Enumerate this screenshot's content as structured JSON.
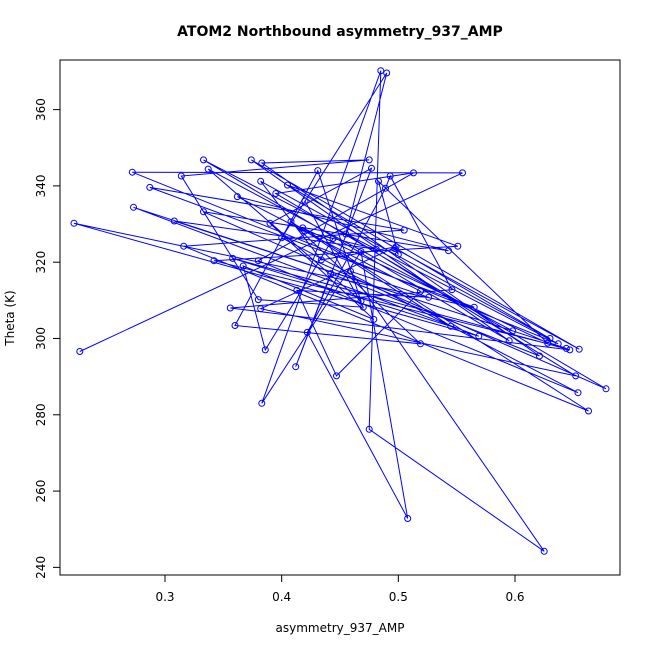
{
  "chart_data": {
    "type": "scatter",
    "title": "ATOM2 Northbound asymmetry_937_AMP",
    "xlabel": "asymmetry_937_AMP",
    "ylabel": "Theta (K)",
    "xlim": [
      0.21,
      0.69
    ],
    "ylim": [
      238,
      373
    ],
    "x_ticks": [
      0.3,
      0.4,
      0.5,
      0.6
    ],
    "x_tick_labels": [
      "0.3",
      "0.4",
      "0.5",
      "0.6"
    ],
    "y_ticks": [
      240,
      260,
      280,
      300,
      320,
      340,
      360
    ],
    "y_tick_labels": [
      "240",
      "260",
      "280",
      "300",
      "320",
      "340",
      "360"
    ],
    "grid": false,
    "legend": "none",
    "series": [
      {
        "color": "#0000ff",
        "marker": "open-circle",
        "line": true,
        "x": [
          0.227,
          0.555,
          0.272,
          0.637,
          0.333,
          0.595,
          0.374,
          0.655,
          0.497,
          0.5,
          0.483,
          0.628,
          0.418,
          0.663,
          0.316,
          0.505,
          0.287,
          0.565,
          0.222,
          0.569,
          0.273,
          0.644,
          0.342,
          0.551,
          0.405,
          0.63,
          0.382,
          0.434,
          0.498,
          0.382,
          0.652,
          0.455,
          0.49,
          0.4,
          0.654,
          0.38,
          0.513,
          0.395,
          0.678,
          0.333,
          0.543,
          0.362,
          0.519,
          0.447,
          0.413,
          0.526,
          0.459,
          0.625,
          0.475,
          0.485,
          0.383,
          0.468,
          0.508,
          0.422,
          0.489,
          0.493,
          0.546,
          0.356,
          0.647,
          0.358,
          0.545,
          0.408,
          0.519,
          0.36,
          0.431,
          0.468,
          0.337,
          0.598,
          0.308,
          0.481,
          0.418,
          0.444,
          0.386,
          0.367,
          0.479,
          0.39,
          0.477,
          0.412,
          0.442,
          0.621,
          0.383,
          0.475,
          0.314,
          0.38,
          0.47,
          0.42
        ],
        "y": [
          296.6,
          343.4,
          343.6,
          298.6,
          346.8,
          299.4,
          346.8,
          297.2,
          323.6,
          322.0,
          341.2,
          298.8,
          329.0,
          281.0,
          324.2,
          328.4,
          339.6,
          308.2,
          330.2,
          300.6,
          334.4,
          297.4,
          320.4,
          324.2,
          340.2,
          300.0,
          341.2,
          320.6,
          324.0,
          307.8,
          290.2,
          327.4,
          369.6,
          326.4,
          285.8,
          320.4,
          343.4,
          338.0,
          286.8,
          333.2,
          323.0,
          337.2,
          312.4,
          290.2,
          312.6,
          310.8,
          317.6,
          244.2,
          276.2,
          370.2,
          283.0,
          322.8,
          252.8,
          301.6,
          339.4,
          342.6,
          312.8,
          308.0,
          297.0,
          321.0,
          303.2,
          330.6,
          298.6,
          303.4,
          344.0,
          309.8,
          344.4,
          302.0,
          330.8,
          323.4,
          328.2,
          326.2,
          297.0,
          319.0,
          305.0,
          330.2,
          344.6,
          292.6,
          317.0,
          295.4,
          346.0,
          346.8,
          342.6,
          310.2,
          308.2,
          336.0
        ]
      }
    ]
  }
}
